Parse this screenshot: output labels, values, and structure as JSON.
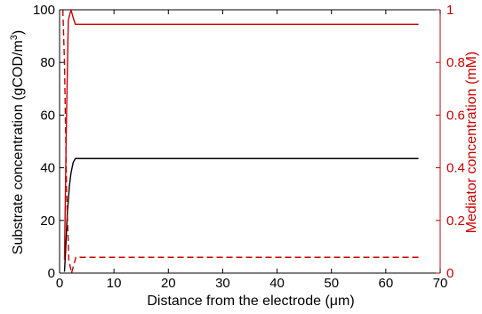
{
  "chart_data": {
    "type": "line",
    "x_axis": {
      "label": "Distance from the electrode (",
      "label_unit": "μ",
      "label_suffix": "m)",
      "range": [
        0,
        70
      ],
      "ticks": [
        0,
        10,
        20,
        30,
        40,
        50,
        60,
        70
      ],
      "tick_labels": [
        "0",
        "10",
        "20",
        "30",
        "40",
        "50",
        "60",
        "70"
      ]
    },
    "y_left": {
      "label": "Substrate concentration (gCOD/m",
      "label_sup": "3",
      "label_suffix": ")",
      "range": [
        0,
        100
      ],
      "ticks": [
        0,
        20,
        40,
        60,
        80,
        100
      ],
      "tick_labels": [
        "0",
        "20",
        "40",
        "60",
        "80",
        "100"
      ],
      "color": "#000000"
    },
    "y_right": {
      "label": "Mediator concentration (mM)",
      "range": [
        0,
        1
      ],
      "ticks": [
        0,
        0.2,
        0.4,
        0.6,
        0.8,
        1
      ],
      "tick_labels": [
        "0",
        "0.2",
        "0.4",
        "0.6",
        "0.8",
        "1"
      ],
      "color": "#cc0000"
    },
    "grid": false,
    "series": [
      {
        "axis": "left",
        "color": "#000000",
        "style": "solid",
        "x": [
          0.9,
          1.1,
          1.4,
          1.8,
          2.1,
          2.5,
          2.9,
          66
        ],
        "y": [
          0.5,
          8,
          22,
          33,
          38,
          42,
          43.5,
          43.5
        ]
      },
      {
        "axis": "right",
        "color": "#cc0000",
        "style": "solid",
        "x": [
          0.9,
          1.2,
          1.6,
          2.1,
          2.5,
          2.9,
          66
        ],
        "y": [
          0.05,
          0.5,
          0.96,
          1.0,
          0.97,
          0.945,
          0.945
        ]
      },
      {
        "axis": "right",
        "color": "#cc0000",
        "style": "dashed",
        "x": [
          0.6,
          0.9,
          1.3,
          1.7,
          2.2,
          2.6,
          3.0,
          66
        ],
        "y": [
          1.0,
          0.8,
          0.3,
          0.05,
          0.0,
          0.03,
          0.06,
          0.06
        ]
      }
    ]
  }
}
